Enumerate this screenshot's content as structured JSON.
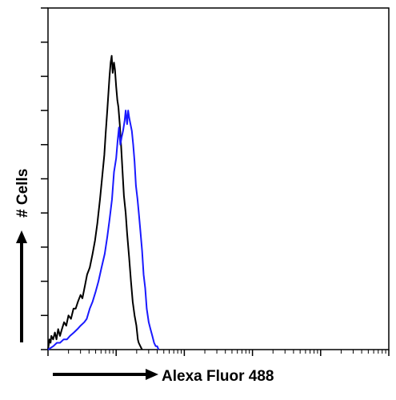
{
  "chart_data": {
    "type": "line",
    "title": "",
    "xlabel": "Alexa Fluor 488",
    "ylabel": "# Cells",
    "x_scale": "log",
    "xlim": [
      1,
      100000
    ],
    "ylim": [
      0,
      100
    ],
    "grid": false,
    "legend": "none",
    "series": [
      {
        "color": "#000000",
        "points": [
          [
            1.0,
            0
          ],
          [
            1.05,
            3
          ],
          [
            1.09,
            2
          ],
          [
            1.12,
            4
          ],
          [
            1.19,
            3
          ],
          [
            1.26,
            5
          ],
          [
            1.33,
            3
          ],
          [
            1.41,
            6
          ],
          [
            1.5,
            4
          ],
          [
            1.6,
            6
          ],
          [
            1.72,
            8
          ],
          [
            1.85,
            7
          ],
          [
            2.0,
            10
          ],
          [
            2.17,
            9
          ],
          [
            2.37,
            12
          ],
          [
            2.55,
            12
          ],
          [
            2.75,
            14
          ],
          [
            3.0,
            16
          ],
          [
            3.2,
            15
          ],
          [
            3.5,
            19
          ],
          [
            3.75,
            22
          ],
          [
            4.1,
            24
          ],
          [
            4.5,
            28
          ],
          [
            4.9,
            32
          ],
          [
            5.3,
            37
          ],
          [
            5.8,
            44
          ],
          [
            6.2,
            50
          ],
          [
            6.7,
            57
          ],
          [
            7.0,
            63
          ],
          [
            7.4,
            70
          ],
          [
            7.7,
            75
          ],
          [
            8.0,
            80
          ],
          [
            8.3,
            84
          ],
          [
            8.6,
            86
          ],
          [
            8.9,
            81
          ],
          [
            9.3,
            84
          ],
          [
            9.6,
            82
          ],
          [
            10.0,
            77
          ],
          [
            10.4,
            73
          ],
          [
            10.8,
            71
          ],
          [
            11.3,
            66
          ],
          [
            11.8,
            60
          ],
          [
            12.4,
            52
          ],
          [
            13.0,
            45
          ],
          [
            13.8,
            40
          ],
          [
            14.5,
            34
          ],
          [
            15.5,
            27
          ],
          [
            16.5,
            20
          ],
          [
            17.5,
            14
          ],
          [
            18.6,
            10
          ],
          [
            19.8,
            7
          ],
          [
            20.8,
            3
          ],
          [
            21.4,
            2
          ],
          [
            22.6,
            1
          ],
          [
            24.0,
            0
          ]
        ]
      },
      {
        "color": "#1a1aff",
        "points": [
          [
            1.0,
            0
          ],
          [
            1.2,
            1
          ],
          [
            1.35,
            2
          ],
          [
            1.5,
            2
          ],
          [
            1.7,
            3
          ],
          [
            1.9,
            3
          ],
          [
            2.1,
            4
          ],
          [
            2.4,
            5
          ],
          [
            2.7,
            6
          ],
          [
            3.0,
            7
          ],
          [
            3.4,
            8
          ],
          [
            3.7,
            9
          ],
          [
            4.1,
            12
          ],
          [
            4.5,
            14
          ],
          [
            5.0,
            17
          ],
          [
            5.5,
            20
          ],
          [
            6.1,
            24
          ],
          [
            6.8,
            28
          ],
          [
            7.4,
            33
          ],
          [
            8.0,
            38
          ],
          [
            8.7,
            44
          ],
          [
            9.3,
            52
          ],
          [
            10.0,
            56
          ],
          [
            10.5,
            61
          ],
          [
            11.0,
            65
          ],
          [
            11.5,
            60
          ],
          [
            12.0,
            62
          ],
          [
            12.6,
            64
          ],
          [
            13.3,
            67
          ],
          [
            13.8,
            70
          ],
          [
            14.5,
            66
          ],
          [
            15.0,
            70
          ],
          [
            15.5,
            68
          ],
          [
            16.2,
            66
          ],
          [
            17.0,
            64
          ],
          [
            17.8,
            60
          ],
          [
            18.6,
            55
          ],
          [
            19.5,
            48
          ],
          [
            20.6,
            44
          ],
          [
            21.5,
            40
          ],
          [
            22.6,
            35
          ],
          [
            24.0,
            29
          ],
          [
            25.3,
            22
          ],
          [
            26.7,
            18
          ],
          [
            28.1,
            12
          ],
          [
            30.0,
            8
          ],
          [
            31.9,
            6
          ],
          [
            33.9,
            4
          ],
          [
            36.0,
            2
          ],
          [
            38.0,
            1
          ],
          [
            39.9,
            1
          ],
          [
            42.0,
            0
          ]
        ]
      }
    ]
  }
}
